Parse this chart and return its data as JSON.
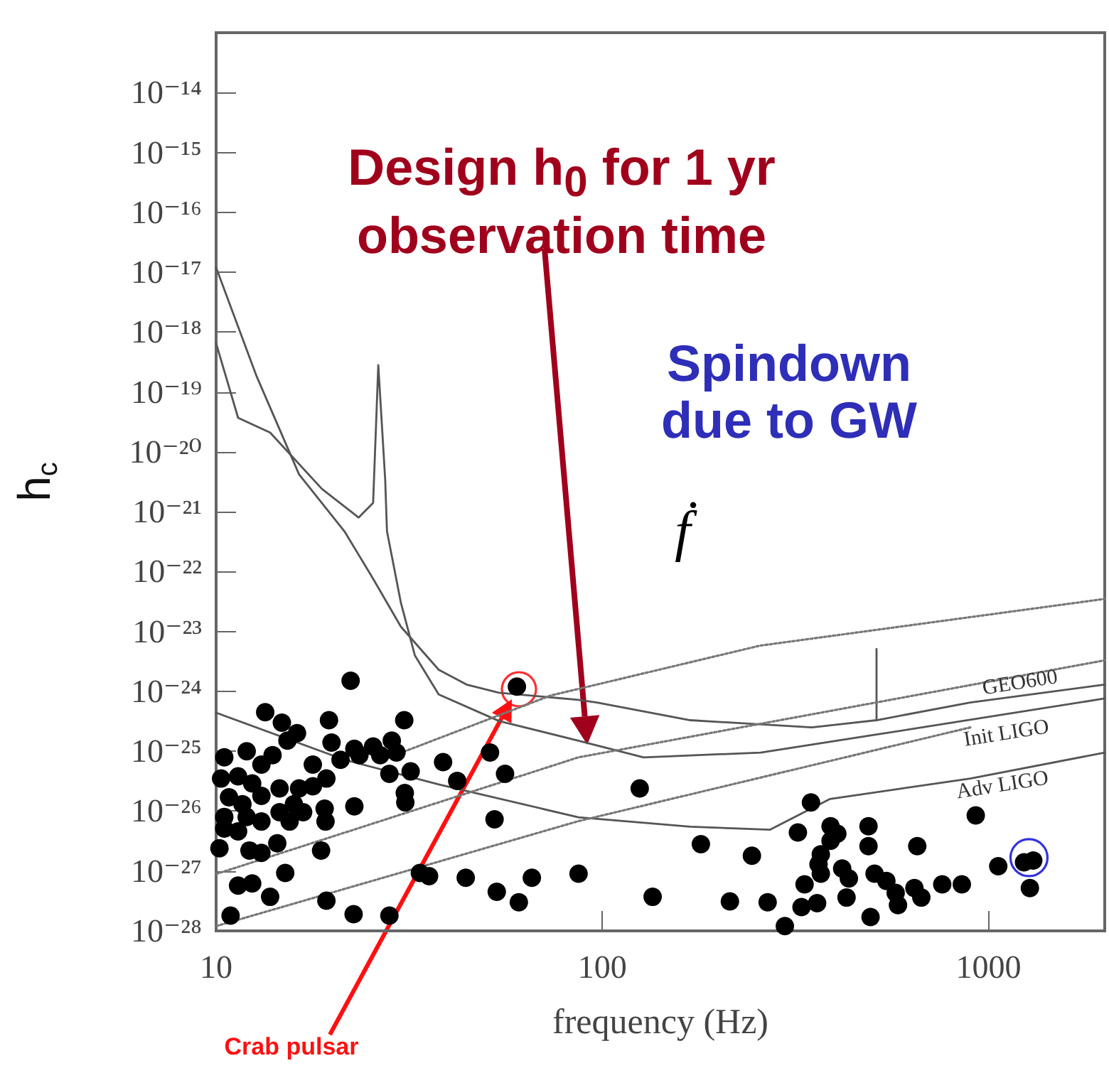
{
  "chart_data": {
    "type": "line",
    "xlabel": "frequency (Hz)",
    "ylabel": "h$_{c}$",
    "log": "xy",
    "xlim": [
      10,
      2000
    ],
    "ylim": [
      1e-28,
      1e-13
    ],
    "xticks": [
      10,
      100,
      1000
    ],
    "yticks": [
      {
        "value": 1e-28,
        "label": "10⁻²⁸"
      },
      {
        "value": 1e-27,
        "label": "10⁻²⁷"
      },
      {
        "value": 1e-26,
        "label": "10⁻²⁶"
      },
      {
        "value": 1e-25,
        "label": "10⁻²⁵"
      },
      {
        "value": 1e-24,
        "label": "10⁻²⁴"
      },
      {
        "value": 1e-23,
        "label": "10⁻²³"
      },
      {
        "value": 1e-22,
        "label": "10⁻²²"
      },
      {
        "value": 1e-21,
        "label": "10⁻²¹"
      },
      {
        "value": 1e-20,
        "label": "10⁻²⁰"
      },
      {
        "value": 1e-19,
        "label": "10⁻¹⁹"
      },
      {
        "value": 1e-18,
        "label": "10⁻¹⁸"
      },
      {
        "value": 1e-17,
        "label": "10⁻¹⁷"
      },
      {
        "value": 1e-16,
        "label": "10⁻¹⁶"
      },
      {
        "value": 1e-15,
        "label": "10⁻¹⁵"
      },
      {
        "value": 1e-14,
        "label": "10⁻¹⁴"
      },
      {
        "value": 1e-13,
        "label": null
      }
    ],
    "legend": false,
    "series": [
      {
        "name": "GEO600",
        "color": "#555555",
        "line_style": "solid",
        "x": [
          10,
          12.7,
          16.4,
          21.5,
          25.5,
          30.1,
          37.7,
          44.5,
          54,
          86.7,
          96.8,
          169,
          349,
          513,
          513,
          513,
          897,
          2000
        ],
        "values": [
          1.2e-17,
          1.9e-19,
          4.2e-21,
          4.7e-22,
          7.6e-23,
          1.2e-23,
          2.3e-24,
          1.3e-24,
          9.5e-25,
          7.2e-25,
          6.5e-25,
          3.3e-25,
          2.5e-25,
          3.3e-25,
          5.1e-24,
          3.3e-25,
          6.5e-25,
          1.3e-24
        ]
      },
      {
        "name": "Init LIGO",
        "color": "#555555",
        "line_style": "solid",
        "x": [
          10,
          11.4,
          13.8,
          18.8,
          23.4,
          25.5,
          26.3,
          27.4,
          27.7,
          30.1,
          32.7,
          37.7,
          54,
          86.7,
          128,
          257,
          513,
          2000
        ],
        "values": [
          6.5e-19,
          3.7e-20,
          2.1e-20,
          2.4e-21,
          8e-22,
          1.4e-21,
          2.8e-19,
          3.5e-21,
          4.7e-22,
          3e-23,
          4e-24,
          8.9e-25,
          3.2e-25,
          1.5e-25,
          7.9e-26,
          9.5e-26,
          1.9e-25,
          7.6e-25
        ]
      },
      {
        "name": "Adv LIGO",
        "color": "#555555",
        "line_style": "solid",
        "x": [
          10,
          21.5,
          37.7,
          86.7,
          169,
          272,
          389,
          897,
          2000
        ],
        "values": [
          4.4e-25,
          7.2e-26,
          2.8e-26,
          7.9e-27,
          5.5e-27,
          4.9e-27,
          1.6e-26,
          3.5e-26,
          9.5e-26
        ]
      },
      {
        "color": "#777777",
        "line_style": "dotted",
        "x": [
          27,
          73.4,
          256,
          2000
        ],
        "values": [
          7.2e-26,
          8.5e-25,
          5.8e-24,
          3.5e-23
        ]
      },
      {
        "color": "#777777",
        "line_style": "dotted",
        "x": [
          10,
          86.7,
          2000
        ],
        "values": [
          8.9e-28,
          7.9e-26,
          3.3e-24
        ]
      },
      {
        "color": "#777777",
        "line_style": "dotted",
        "x": [
          10,
          86.7,
          897
        ],
        "values": [
          1.2e-28,
          6.8e-27,
          2.5e-25
        ]
      },
      {
        "type": "scatter",
        "color": "#000000",
        "marker": "circle",
        "x": [
          22.3,
          13.4,
          19.6,
          30.7,
          14.8,
          16.2,
          15.3,
          14.0,
          19.9,
          22.8,
          25.5,
          28.5,
          29.3,
          10.5,
          12.0,
          13.1,
          17.8,
          21.0,
          23.5,
          26.6,
          28.1,
          31.9,
          38.7,
          42.1,
          51.2,
          56.0,
          60.1,
          10.3,
          11.4,
          12.4,
          10.8,
          11.7,
          13.1,
          14.6,
          16.4,
          17.8,
          19.3,
          10.5,
          12.0,
          13.1,
          14.6,
          15.9,
          16.8,
          10.5,
          11.4,
          15.5,
          19.1,
          19.2,
          22.8,
          30.8,
          30.9,
          52.6,
          10.2,
          12.2,
          13.1,
          14.4,
          18.7,
          15.1,
          11.4,
          12.4,
          13.8,
          19.3,
          10.9,
          22.7,
          28.1,
          33.7,
          35.6,
          44.3,
          53.3,
          60.8,
          65.7,
          125,
          347,
          180,
          244,
          321,
          390,
          406,
          390,
          368,
          363,
          368,
          418,
          435,
          489,
          489,
          654,
          927,
          86.8,
          135,
          214,
          268,
          297,
          328,
          360,
          334,
          429,
          495,
          507,
          544,
          575,
          583,
          643,
          670,
          759,
          853,
          1060,
          1236,
          1306,
          1280
        ],
        "values": [
          1.5e-24,
          4.5e-25,
          3.3e-25,
          3.3e-25,
          3e-25,
          2e-25,
          1.5e-25,
          8.6e-26,
          1.4e-25,
          1.1e-25,
          1.2e-25,
          1.5e-25,
          9.5e-26,
          7.9e-26,
          1e-25,
          6e-26,
          6e-26,
          7.2e-26,
          8.6e-26,
          8.6e-26,
          4.2e-26,
          4.6e-26,
          6.6e-26,
          3.2e-26,
          9.5e-26,
          4.2e-26,
          1.2e-24,
          3.5e-26,
          3.8e-26,
          2.9e-26,
          1.7e-26,
          1.3e-26,
          1.8e-26,
          2.4e-26,
          2.4e-26,
          2.6e-26,
          3.5e-26,
          8e-27,
          8e-27,
          6.7e-27,
          9.6e-27,
          1.3e-26,
          9.6e-27,
          5.1e-27,
          4.6e-27,
          6.7e-27,
          1.1e-26,
          6.7e-27,
          1.2e-26,
          2e-26,
          1.4e-26,
          7.3e-27,
          2.4e-27,
          2.2e-27,
          2e-27,
          2.9e-27,
          2.2e-27,
          9.3e-28,
          5.7e-28,
          6.2e-28,
          3.7e-28,
          3.2e-28,
          1.8e-28,
          1.9e-28,
          1.8e-28,
          9.3e-28,
          8.2e-28,
          7.7e-28,
          4.5e-28,
          3e-28,
          7.7e-28,
          2.4e-26,
          1.4e-26,
          2.8e-27,
          1.8e-27,
          4.4e-27,
          5.6e-27,
          4.2e-27,
          3.2e-27,
          1.9e-27,
          1.3e-27,
          9e-28,
          1.1e-27,
          7.5e-28,
          5.6e-27,
          2.6e-27,
          2.6e-27,
          8.5e-27,
          9e-28,
          3.7e-28,
          3.1e-28,
          3e-28,
          1.2e-28,
          2.5e-28,
          2.9e-28,
          6e-28,
          3.6e-28,
          1.7e-28,
          9e-28,
          6.8e-28,
          4.3e-28,
          2.7e-28,
          5.2e-28,
          3.6e-28,
          6e-28,
          6e-28,
          1.2e-27,
          1.4e-27,
          1.5e-27,
          5.2e-28
        ]
      }
    ],
    "annotations": [
      "Design h$_{0}$  for 1 yr observation time",
      "Spindown due to GW",
      "ḟ",
      "Crab pulsar"
    ]
  }
}
